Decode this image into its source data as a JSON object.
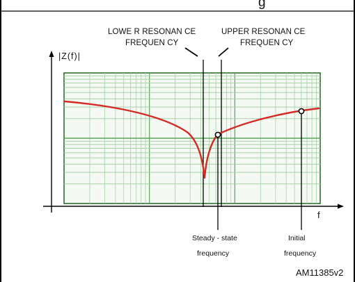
{
  "header_title_fragment": "g",
  "y_axis_label": "|Z(f)|",
  "x_axis_label": "f",
  "annotations": {
    "lower_resonance": [
      "LOWE R RESONAN CE",
      "FREQUEN CY"
    ],
    "upper_resonance": [
      "UPPER RESONAN CE",
      "FREQUEN CY"
    ],
    "steady_state": [
      "Steady - state",
      "frequency"
    ],
    "initial": [
      "Initial",
      "frequency"
    ]
  },
  "figure_id": "AM11385v2",
  "colors": {
    "curve": "#d42a25",
    "grid_major": "#5aa35a",
    "grid_minor": "#a8d1a8",
    "plot_background": "#f4faf3",
    "axes": "#000000"
  }
}
